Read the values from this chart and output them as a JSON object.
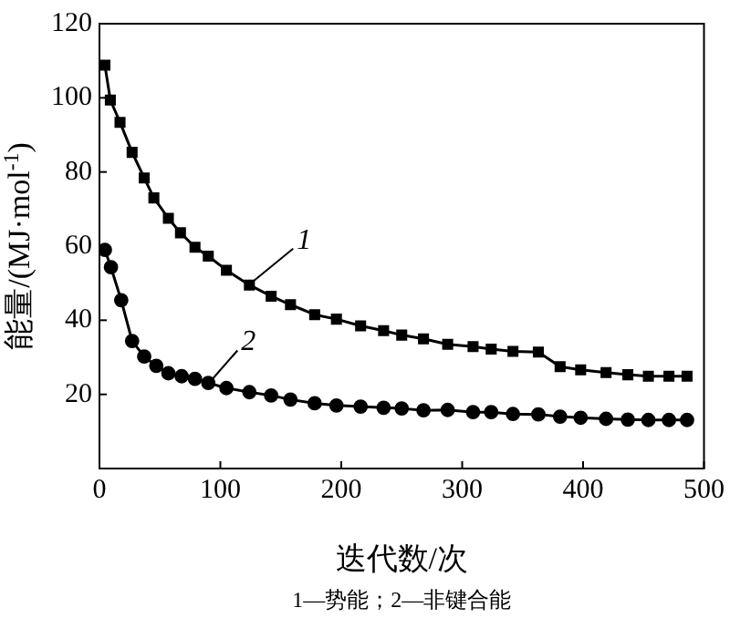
{
  "chart_data": {
    "type": "line",
    "xlabel": "迭代数/次",
    "ylabel": "能量/(MJ·mol$^{-1}$)",
    "xlim": [
      0,
      500
    ],
    "xticks": [
      0,
      100,
      200,
      300,
      400,
      500
    ],
    "ylim": [
      0,
      120
    ],
    "yticks": [
      {
        "value": 0,
        "label": null
      },
      20,
      40,
      60,
      80,
      100,
      120
    ],
    "grid": false,
    "legend": false,
    "line_style": "solid",
    "series": [
      {
        "x": [
          4.5,
          9,
          17,
          27,
          37,
          45,
          57,
          67,
          79,
          90,
          105,
          124,
          142,
          158,
          178,
          196,
          216,
          235,
          250,
          268,
          288,
          309,
          324,
          342,
          363,
          381,
          398,
          419,
          437,
          454,
          471,
          486
        ],
        "values": [
          108.8,
          99.4,
          93.4,
          85.3,
          78.4,
          73,
          67.5,
          63.6,
          59.7,
          57.3,
          53.5,
          49.5,
          46.5,
          44.2,
          41.5,
          40.3,
          38.5,
          37.2,
          36,
          35,
          33.5,
          32.9,
          32.2,
          31.6,
          31.4,
          27.5,
          26.6,
          25.9,
          25.3,
          24.9,
          24.9,
          24.9
        ],
        "color": "#000000",
        "marker": "square"
      },
      {
        "x": [
          4.5,
          9.5,
          18,
          27,
          37,
          47,
          57,
          68,
          79,
          90,
          105,
          124,
          142,
          158,
          178,
          196,
          216,
          235,
          250,
          268,
          288,
          309,
          324,
          342,
          363,
          381,
          398,
          419,
          437,
          454,
          471,
          486
        ],
        "values": [
          59,
          54.3,
          45.4,
          34.4,
          30.2,
          27.7,
          25.7,
          24.9,
          24.2,
          23.1,
          21.7,
          20.6,
          19.7,
          18.6,
          17.6,
          17,
          16.7,
          16.4,
          16.2,
          15.7,
          15.8,
          15.2,
          15.2,
          14.7,
          14.6,
          14,
          13.7,
          13.4,
          13.2,
          13.1,
          13.1,
          13.1
        ],
        "color": "#000000",
        "marker": "circle"
      }
    ],
    "annotations": [
      {
        "text": "1",
        "x": 124,
        "y": 49.5
      },
      {
        "text": "2",
        "x": 90,
        "y": 23
      },
      "1—势能；2—非键合能"
    ]
  }
}
